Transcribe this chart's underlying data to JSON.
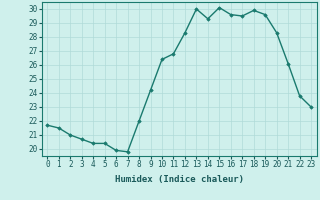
{
  "x": [
    0,
    1,
    2,
    3,
    4,
    5,
    6,
    7,
    8,
    9,
    10,
    11,
    12,
    13,
    14,
    15,
    16,
    17,
    18,
    19,
    20,
    21,
    22,
    23
  ],
  "y": [
    21.7,
    21.5,
    21.0,
    20.7,
    20.4,
    20.4,
    19.9,
    19.8,
    22.0,
    24.2,
    26.4,
    26.8,
    28.3,
    30.0,
    29.3,
    30.1,
    29.6,
    29.5,
    29.9,
    29.6,
    28.3,
    26.1,
    23.8,
    23.0
  ],
  "line_color": "#1a7a6e",
  "marker": "D",
  "marker_size": 1.8,
  "bg_color": "#cff0ec",
  "grid_color": "#b0dbd8",
  "xlabel": "Humidex (Indice chaleur)",
  "xlim": [
    -0.5,
    23.5
  ],
  "ylim": [
    19.5,
    30.5
  ],
  "yticks": [
    20,
    21,
    22,
    23,
    24,
    25,
    26,
    27,
    28,
    29,
    30
  ],
  "xticks": [
    0,
    1,
    2,
    3,
    4,
    5,
    6,
    7,
    8,
    9,
    10,
    11,
    12,
    13,
    14,
    15,
    16,
    17,
    18,
    19,
    20,
    21,
    22,
    23
  ],
  "tick_fontsize": 5.5,
  "label_fontsize": 6.5,
  "linewidth": 1.0
}
